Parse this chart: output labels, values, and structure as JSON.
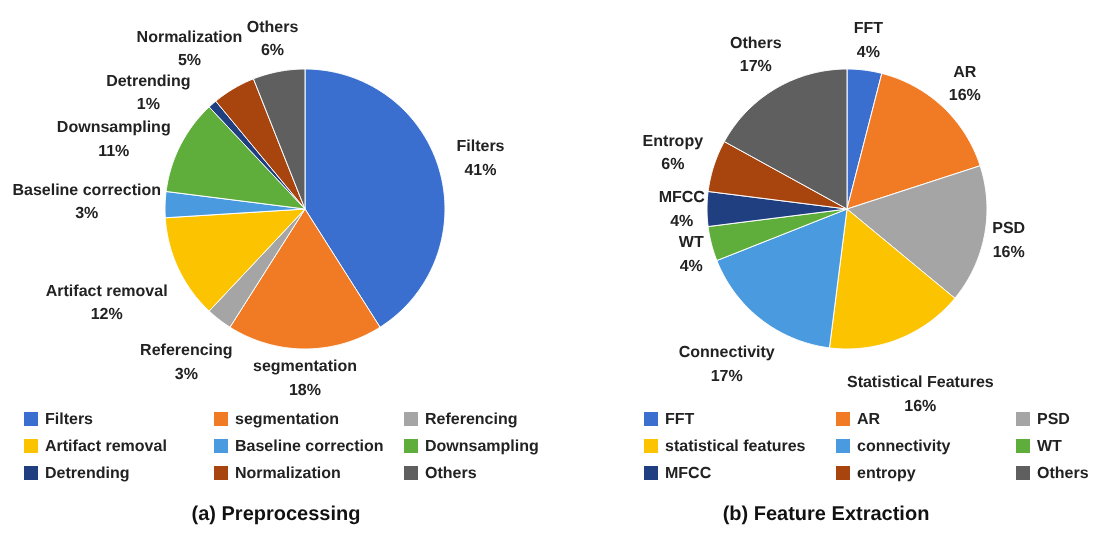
{
  "chart_data": [
    {
      "type": "pie",
      "title": "(a) Preprocessing",
      "categories": [
        "Filters",
        "segmentation",
        "Referencing",
        "Artifact removal",
        "Baseline correction",
        "Downsampling",
        "Detrending",
        "Normalization",
        "Others"
      ],
      "values": [
        41,
        18,
        3,
        12,
        3,
        11,
        1,
        5,
        6
      ],
      "colors": [
        "#3a6fd0",
        "#f07b24",
        "#a5a5a5",
        "#fcc300",
        "#4a9ae0",
        "#5fad3a",
        "#1f3f80",
        "#a8440e",
        "#5f5f5f"
      ],
      "value_labels": [
        "Filters\n41%",
        "segmentation\n18%",
        "Referencing\n3%",
        "Artifact removal\n12%",
        "Baseline correction\n3%",
        "Downsampling\n11%",
        "Detrending\n1%",
        "Normalization\n5%",
        "Others\n6%"
      ],
      "legend": "bottom"
    },
    {
      "type": "pie",
      "title": "(b) Feature Extraction",
      "categories": [
        "FFT",
        "AR",
        "PSD",
        "statistical features",
        "connectivity",
        "WT",
        "MFCC",
        "entropy",
        "Others"
      ],
      "values": [
        4,
        16,
        16,
        16,
        17,
        4,
        4,
        6,
        17
      ],
      "colors": [
        "#3a6fd0",
        "#f07b24",
        "#a5a5a5",
        "#fcc300",
        "#4a9ae0",
        "#5fad3a",
        "#1f3f80",
        "#a8440e",
        "#5f5f5f"
      ],
      "value_labels": [
        "FFT\n4%",
        "AR\n16%",
        "PSD\n16%",
        "Statistical Features\n16%",
        "Connectivity\n17%",
        "WT\n4%",
        "MFCC\n4%",
        "Entropy\n6%",
        "Others\n17%"
      ],
      "legend": "bottom"
    }
  ]
}
